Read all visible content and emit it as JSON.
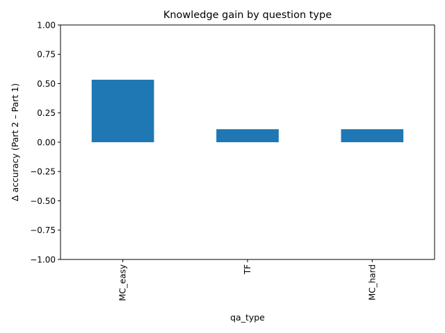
{
  "chart_data": {
    "type": "bar",
    "title": "Knowledge gain by question type",
    "xlabel": "qa_type",
    "ylabel": "Δ accuracy (Part 2 – Part 1)",
    "categories": [
      "MC_easy",
      "TF",
      "MC_hard"
    ],
    "values": [
      0.533,
      0.111,
      0.111
    ],
    "ylim": [
      -1.0,
      1.0
    ],
    "yticks": [
      "−1.00",
      "−0.75",
      "−0.50",
      "−0.25",
      "0.00",
      "0.25",
      "0.50",
      "0.75",
      "1.00"
    ],
    "ytick_values": [
      -1.0,
      -0.75,
      -0.5,
      -0.25,
      0.0,
      0.25,
      0.5,
      0.75,
      1.0
    ],
    "grid": false,
    "legend": "none",
    "bar_color": "#1f77b4"
  }
}
